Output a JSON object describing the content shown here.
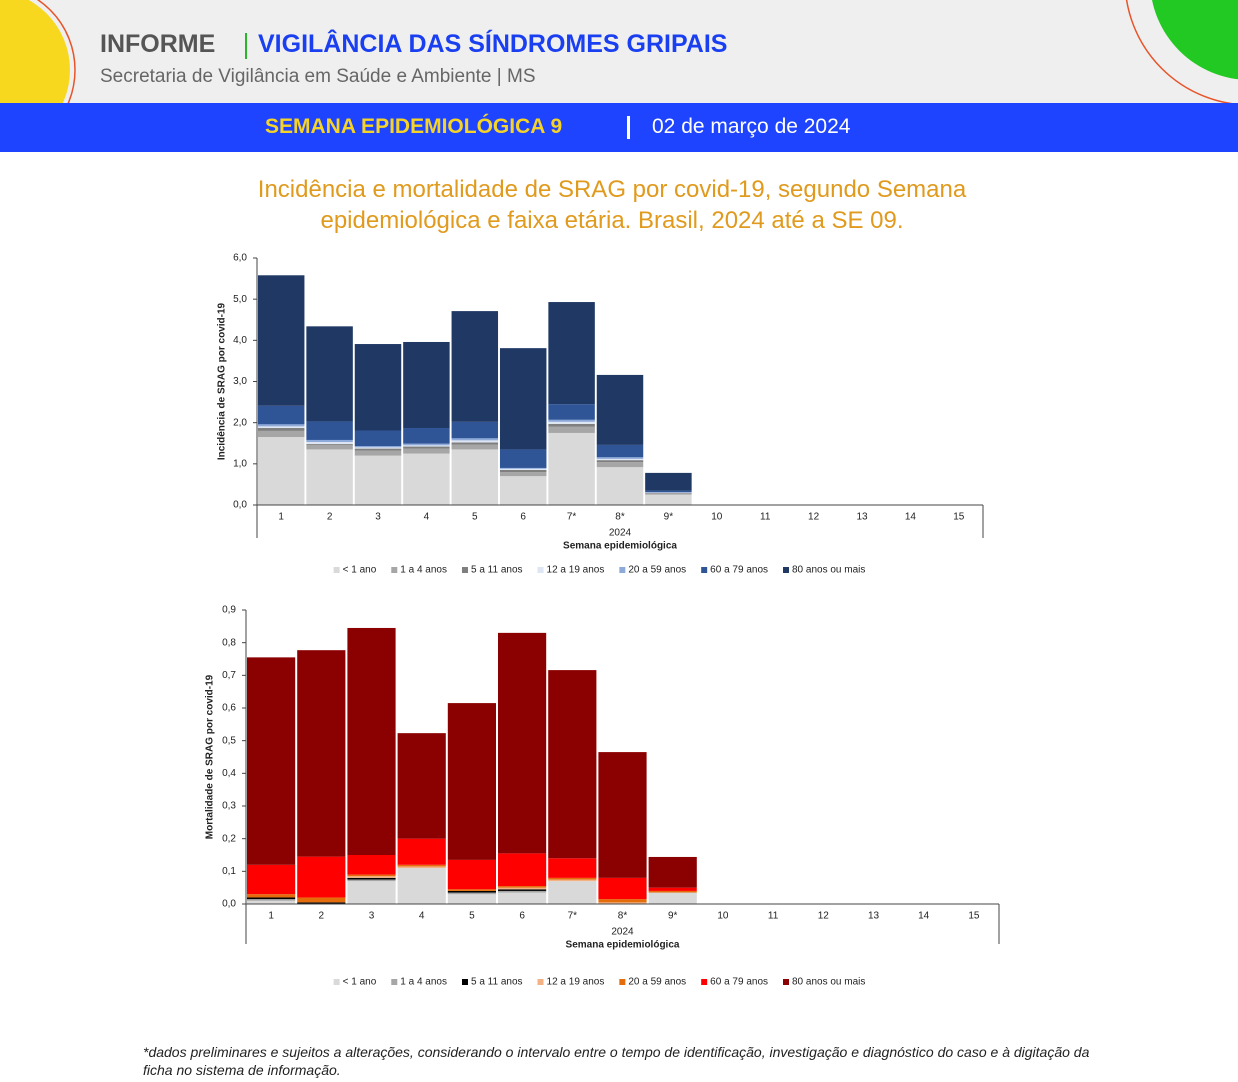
{
  "header": {
    "label": "INFORME",
    "title": "VIGILÂNCIA DAS SÍNDROMES GRIPAIS",
    "subtitle": "Secretaria de Vigilância em Saúde e Ambiente | MS",
    "week": "SEMANA EPIDEMIOLÓGICA 9",
    "date": "02 de março de 2024"
  },
  "figure_title": "Incidência e mortalidade de SRAG por covid-19, segundo Semana epidemiológica e faixa etária. Brasil, 2024 até a SE 09.",
  "footnote": "*dados preliminares e sujeitos a alterações, considerando o intervalo entre o tempo de identificação, investigação e diagnóstico do caso e à digitação da ficha no sistema de informação.",
  "chart_data": [
    {
      "type": "stacked-bar",
      "y_label": "Incidência de SRAG por covid-19",
      "x_label": "Semana epidemiológica",
      "x_group_label": "2024",
      "categories": [
        "1",
        "2",
        "3",
        "4",
        "5",
        "6",
        "7*",
        "8*",
        "9*",
        "10",
        "11",
        "12",
        "13",
        "14",
        "15"
      ],
      "ylim": [
        0,
        6
      ],
      "yticks": [
        {
          "value": 0,
          "label": "0,0"
        },
        {
          "value": 1,
          "label": "1,0"
        },
        {
          "value": 2,
          "label": "2,0"
        },
        {
          "value": 3,
          "label": "3,0"
        },
        {
          "value": 4,
          "label": "4,0"
        },
        {
          "value": 5,
          "label": "5,0"
        },
        {
          "value": 6,
          "label": "6,0"
        }
      ],
      "grid": false,
      "legend": "bottom",
      "series": [
        {
          "name": "< 1 ano",
          "color": "#d9d9d9",
          "values": [
            1.65,
            1.35,
            1.2,
            1.25,
            1.35,
            0.7,
            1.75,
            0.92,
            0.25,
            null,
            null,
            null,
            null,
            null,
            null
          ]
        },
        {
          "name": "1 a 4 anos",
          "color": "#a6a6a6",
          "values": [
            0.15,
            0.1,
            0.12,
            0.12,
            0.12,
            0.1,
            0.15,
            0.12,
            0.03,
            null,
            null,
            null,
            null,
            null,
            null
          ]
        },
        {
          "name": "5 a 11 anos",
          "color": "#7f7f7f",
          "values": [
            0.07,
            0.03,
            0.05,
            0.05,
            0.05,
            0.05,
            0.07,
            0.05,
            0.01,
            null,
            null,
            null,
            null,
            null,
            null
          ]
        },
        {
          "name": "12 a 19 anos",
          "color": "#dde6f2",
          "values": [
            0.04,
            0.05,
            0.03,
            0.03,
            0.05,
            0.03,
            0.05,
            0.03,
            0.01,
            null,
            null,
            null,
            null,
            null,
            null
          ]
        },
        {
          "name": "20 a 59 anos",
          "color": "#8eaadb",
          "values": [
            0.05,
            0.05,
            0.03,
            0.04,
            0.05,
            0.02,
            0.05,
            0.04,
            0.01,
            null,
            null,
            null,
            null,
            null,
            null
          ]
        },
        {
          "name": "60 a 79 anos",
          "color": "#2f5597",
          "values": [
            0.45,
            0.45,
            0.38,
            0.38,
            0.4,
            0.45,
            0.38,
            0.3,
            0.04,
            null,
            null,
            null,
            null,
            null,
            null
          ]
        },
        {
          "name": "80 anos ou mais",
          "color": "#1f3864",
          "values": [
            3.17,
            2.31,
            2.1,
            2.09,
            2.69,
            2.46,
            2.48,
            1.7,
            0.43,
            null,
            null,
            null,
            null,
            null,
            null
          ]
        }
      ]
    },
    {
      "type": "stacked-bar",
      "y_label": "Mortalidade de SRAG por covid-19",
      "x_label": "Semana epidemiológica",
      "x_group_label": "2024",
      "categories": [
        "1",
        "2",
        "3",
        "4",
        "5",
        "6",
        "7*",
        "8*",
        "9*",
        "10",
        "11",
        "12",
        "13",
        "14",
        "15"
      ],
      "ylim": [
        0,
        0.9
      ],
      "yticks": [
        {
          "value": 0,
          "label": "0,0"
        },
        {
          "value": 0.1,
          "label": "0,1"
        },
        {
          "value": 0.2,
          "label": "0,2"
        },
        {
          "value": 0.3,
          "label": "0,3"
        },
        {
          "value": 0.4,
          "label": "0,4"
        },
        {
          "value": 0.5,
          "label": "0,5"
        },
        {
          "value": 0.6,
          "label": "0,6"
        },
        {
          "value": 0.7,
          "label": "0,7"
        },
        {
          "value": 0.8,
          "label": "0,8"
        },
        {
          "value": 0.9,
          "label": "0,9"
        }
      ],
      "grid": false,
      "legend": "bottom",
      "series": [
        {
          "name": "< 1 ano",
          "color": "#d9d9d9",
          "values": [
            0.01,
            0,
            0.07,
            0.11,
            0.03,
            0.035,
            0.07,
            0,
            0.035,
            null,
            null,
            null,
            null,
            null,
            null
          ]
        },
        {
          "name": "1 a 4 anos",
          "color": "#a6a6a6",
          "values": [
            0.005,
            0,
            0.005,
            0,
            0.005,
            0.005,
            0,
            0,
            0,
            null,
            null,
            null,
            null,
            null,
            null
          ]
        },
        {
          "name": "5 a 11 anos",
          "color": "#000000",
          "values": [
            0.005,
            0.005,
            0.005,
            0,
            0.005,
            0.005,
            0,
            0,
            0,
            null,
            null,
            null,
            null,
            null,
            null
          ]
        },
        {
          "name": "12 a 19 anos",
          "color": "#f4b183",
          "values": [
            0,
            0,
            0.005,
            0.005,
            0,
            0.005,
            0.005,
            0.005,
            0,
            null,
            null,
            null,
            null,
            null,
            null
          ]
        },
        {
          "name": "20 a 59 anos",
          "color": "#e46c0a",
          "values": [
            0.01,
            0.015,
            0.005,
            0.005,
            0.005,
            0.005,
            0.005,
            0.01,
            0.005,
            null,
            null,
            null,
            null,
            null,
            null
          ]
        },
        {
          "name": "60 a 79 anos",
          "color": "#ff0000",
          "values": [
            0.09,
            0.125,
            0.06,
            0.08,
            0.09,
            0.1,
            0.06,
            0.065,
            0.01,
            null,
            null,
            null,
            null,
            null,
            null
          ]
        },
        {
          "name": "80 anos ou mais",
          "color": "#8b0000",
          "values": [
            0.635,
            0.632,
            0.695,
            0.323,
            0.48,
            0.675,
            0.576,
            0.385,
            0.094,
            null,
            null,
            null,
            null,
            null,
            null
          ]
        }
      ]
    }
  ]
}
